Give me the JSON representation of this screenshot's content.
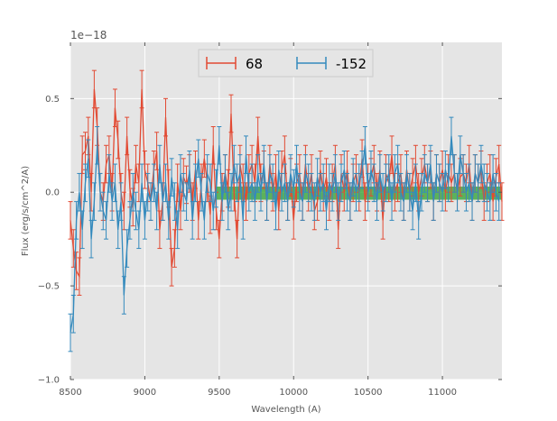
{
  "chart_data": {
    "type": "line",
    "title": "",
    "xlabel": "Wavelength (A)",
    "ylabel": "Flux (erg/s/cm^2/A)",
    "y_offset_label": "1e−18",
    "xlim": [
      8500,
      11400
    ],
    "ylim": [
      -1.0,
      0.8
    ],
    "xticks": [
      8500,
      9000,
      9500,
      10000,
      10500,
      11000
    ],
    "xtick_labels": [
      "8500",
      "9000",
      "9500",
      "10000",
      "10500",
      "11000"
    ],
    "yticks": [
      -1.0,
      -0.5,
      0.0,
      0.5
    ],
    "ytick_labels": [
      "−1.0",
      "−0.5",
      "0.0",
      "0.5"
    ],
    "grid": true,
    "legend_position": "top-center",
    "band": {
      "x": [
        9475,
        11400
      ],
      "y": [
        -0.04,
        0.03
      ],
      "color": "#2ca02c"
    },
    "series": [
      {
        "name": "68",
        "color": "#e24a33",
        "x0": 8500,
        "dx": 20,
        "values": [
          -0.15,
          -0.3,
          -0.42,
          -0.45,
          0.2,
          0.22,
          0.3,
          0.0,
          0.55,
          0.35,
          0.0,
          -0.05,
          0.15,
          0.2,
          0.0,
          0.45,
          0.28,
          0.0,
          -0.1,
          0.3,
          0.02,
          -0.08,
          0.15,
          0.05,
          0.55,
          0.12,
          0.05,
          -0.05,
          0.12,
          0.22,
          -0.2,
          -0.05,
          0.4,
          0.02,
          -0.4,
          -0.3,
          0.05,
          -0.1,
          0.08,
          0.04,
          0.1,
          -0.05,
          0.12,
          -0.15,
          0.05,
          0.18,
          0.05,
          -0.12,
          0.25,
          -0.1,
          -0.25,
          0.0,
          0.1,
          0.02,
          0.42,
          0.0,
          -0.25,
          0.15,
          0.05,
          -0.05,
          0.1,
          0.15,
          0.05,
          0.3,
          0.05,
          0.12,
          -0.05,
          0.15,
          0.0,
          0.1,
          -0.1,
          0.12,
          0.2,
          -0.05,
          0.08,
          -0.15,
          0.05,
          0.1,
          -0.05,
          0.15,
          0.0,
          0.1,
          -0.1,
          -0.05,
          0.12,
          0.0,
          0.08,
          -0.05,
          0.05,
          0.15,
          -0.2,
          0.1,
          0.0,
          0.12,
          -0.05,
          0.05,
          0.1,
          0.0,
          0.18,
          -0.05,
          0.05,
          0.08,
          0.15,
          0.0,
          0.12,
          -0.15,
          0.1,
          0.05,
          0.2,
          0.0,
          0.05,
          0.1,
          -0.05,
          0.12,
          0.0,
          0.08,
          0.15,
          0.0,
          0.08,
          0.15,
          0.05,
          0.12,
          -0.05,
          0.1,
          0.05,
          0.12,
          0.0,
          0.1,
          0.05,
          0.1,
          0.0,
          0.08,
          0.1,
          0.05,
          0.15,
          -0.05,
          0.1,
          0.05,
          0.12,
          -0.05,
          0.05,
          0.1,
          -0.05,
          0.08,
          0.15,
          -0.05
        ],
        "err": 0.1
      },
      {
        "name": "-152",
        "color": "#348abd",
        "x0": 8500,
        "dx": 20,
        "values": [
          -0.75,
          -0.65,
          -0.15,
          0.0,
          -0.2,
          0.05,
          0.18,
          -0.25,
          -0.05,
          0.25,
          0.0,
          -0.1,
          -0.15,
          0.1,
          -0.05,
          0.05,
          -0.2,
          -0.05,
          -0.55,
          -0.3,
          -0.15,
          0.0,
          -0.1,
          -0.2,
          0.05,
          -0.15,
          0.0,
          -0.05,
          0.05,
          -0.1,
          0.15,
          -0.05,
          0.05,
          -0.15,
          0.08,
          -0.05,
          -0.2,
          0.1,
          0.0,
          -0.05,
          0.12,
          -0.15,
          0.05,
          0.18,
          0.0,
          -0.15,
          0.1,
          0.05,
          -0.1,
          0.02,
          0.25,
          -0.05,
          0.1,
          -0.1,
          0.0,
          0.15,
          0.05,
          0.1,
          -0.15,
          0.2,
          0.0,
          0.05,
          -0.05,
          0.1,
          0.0,
          0.15,
          -0.05,
          0.1,
          0.05,
          -0.1,
          0.12,
          0.0,
          0.05,
          -0.05,
          0.1,
          0.02,
          0.15,
          0.0,
          -0.05,
          0.1,
          0.05,
          0.0,
          -0.05,
          0.08,
          0.0,
          0.05,
          -0.1,
          0.05,
          0.0,
          0.1,
          -0.05,
          0.05,
          0.12,
          0.0,
          -0.05,
          0.08,
          0.0,
          0.05,
          0.12,
          0.25,
          0.0,
          0.12,
          0.05,
          -0.05,
          0.1,
          0.0,
          0.05,
          0.1,
          -0.05,
          0.1,
          0.15,
          0.0,
          -0.05,
          0.1,
          0.0,
          -0.1,
          0.05,
          -0.15,
          0.0,
          0.1,
          0.05,
          0.15,
          -0.05,
          0.1,
          0.05,
          0.0,
          0.12,
          0.05,
          0.3,
          0.1,
          0.0,
          0.2,
          0.1,
          0.0,
          0.05,
          -0.05,
          0.1,
          0.05,
          0.15,
          0.05,
          0.0,
          -0.05,
          0.1,
          0.0,
          -0.05
        ],
        "err": 0.1
      }
    ]
  }
}
